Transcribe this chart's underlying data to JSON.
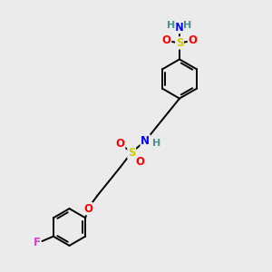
{
  "bg_color": "#ebebeb",
  "bond_color": "#000000",
  "atom_colors": {
    "S": "#cccc00",
    "O": "#ff0000",
    "N": "#0000ff",
    "H": "#4a9090",
    "F": "#cc44cc",
    "C": "#000000"
  },
  "bond_lw": 1.4,
  "font_size": 7.5,
  "xlim": [
    0,
    10
  ],
  "ylim": [
    0,
    10
  ]
}
